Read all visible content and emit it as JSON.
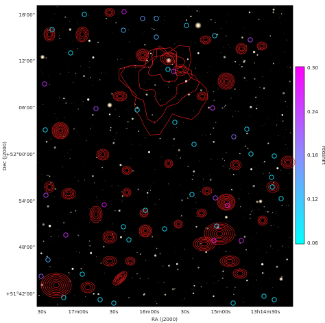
{
  "figure": {
    "y_axis_label": "Dec (J2000)",
    "x_axis_label": "RA (J2000)",
    "y_ticks": [
      "18'00\"",
      "12'00\"",
      "06'00\"",
      "+52°00'00\"",
      "54'00\"",
      "48'00\"",
      "+51°42'00\""
    ],
    "x_ticks": [
      "30s",
      "17m00s",
      "30s",
      "16m00s",
      "30s",
      "15m00s",
      "13h14m30s"
    ],
    "colorbar": {
      "label": "redshift",
      "ticks": [
        "0.30",
        "0.24",
        "0.18",
        "0.12",
        "0.06"
      ],
      "range": [
        0.06,
        0.3
      ],
      "color_low": "#00ffff",
      "color_high": "#ff00ff"
    },
    "colors": {
      "contour": "#ff1f1f",
      "background": "#000000"
    }
  }
}
